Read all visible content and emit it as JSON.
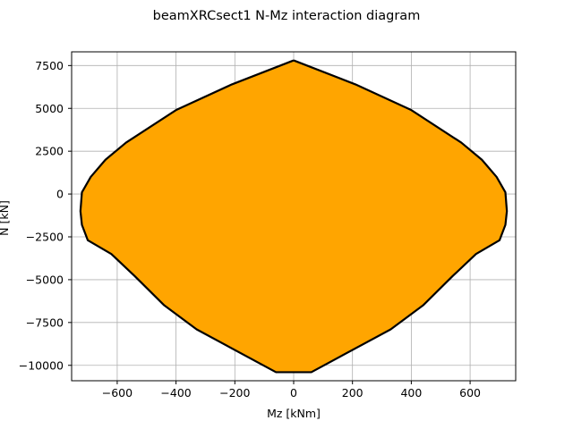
{
  "chart_data": {
    "type": "area",
    "title": "beamXRCsect1 N-Mz interaction diagram",
    "xlabel": "Mz [kNm]",
    "ylabel": "N [kN]",
    "xlim": [
      -755,
      755
    ],
    "ylim": [
      -10900,
      8300
    ],
    "xticks": [
      -600,
      -400,
      -200,
      0,
      200,
      400,
      600
    ],
    "yticks": [
      -10000,
      -7500,
      -5000,
      -2500,
      0,
      2500,
      5000,
      7500
    ],
    "xtick_labels": [
      "−600",
      "−400",
      "−200",
      "0",
      "200",
      "400",
      "600"
    ],
    "ytick_labels": [
      "−10000",
      "−7500",
      "−5000",
      "−2500",
      "0",
      "2500",
      "5000",
      "7500"
    ],
    "grid": true,
    "fill_color": "#ffa500",
    "outline_color": "#000000",
    "series": [
      {
        "x": [
          0,
          210,
          400,
          570,
          640,
          690,
          720,
          725,
          720,
          700,
          620,
          540,
          440,
          330,
          60,
          -60,
          -330,
          -440,
          -540,
          -620,
          -700,
          -720,
          -725,
          -720,
          -690,
          -640,
          -570,
          -400,
          -210,
          0
        ],
        "y": [
          7800,
          6400,
          4900,
          3000,
          2000,
          1000,
          100,
          -1000,
          -1800,
          -2700,
          -3500,
          -4800,
          -6500,
          -7900,
          -10400,
          -10400,
          -7900,
          -6500,
          -4800,
          -3500,
          -2700,
          -1800,
          -1000,
          100,
          1000,
          2000,
          3000,
          4900,
          6400,
          7800
        ]
      }
    ]
  }
}
